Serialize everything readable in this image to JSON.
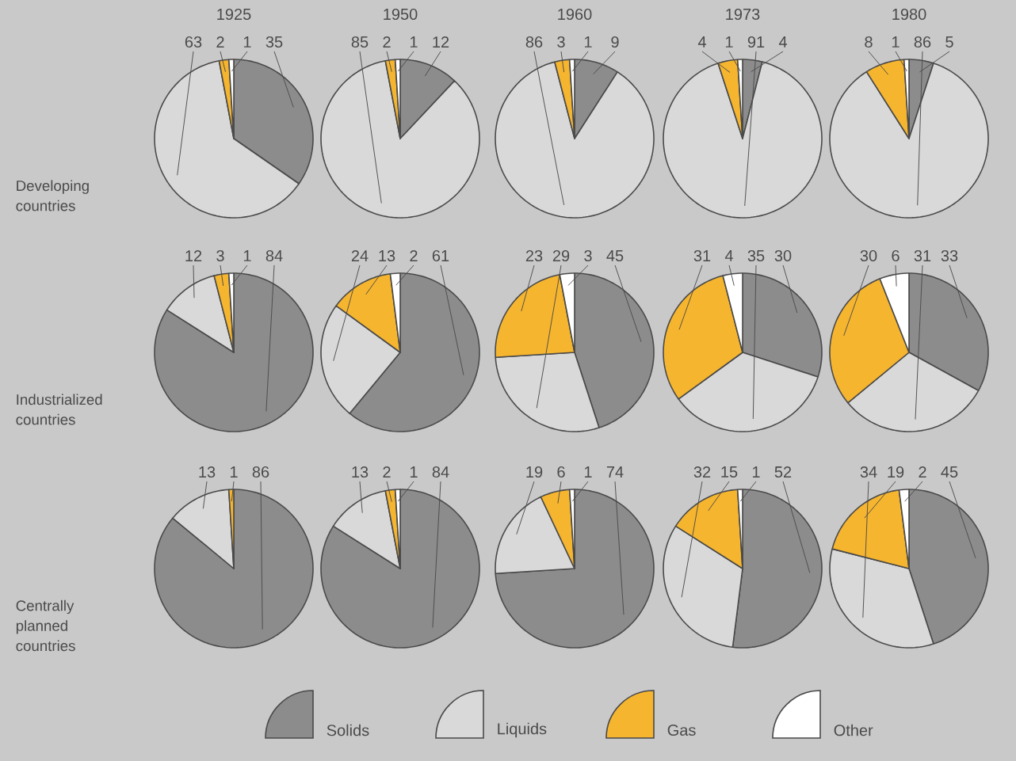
{
  "chart_data": [
    {
      "type": "pie",
      "title": "1925",
      "ylabel": "Developing countries",
      "categories": [
        "Solids",
        "Liquids",
        "Gas",
        "Other"
      ],
      "legend": "bottom",
      "values": [
        35,
        63,
        2,
        1
      ],
      "colors": [
        "#8c8c8c",
        "#d9d9d9",
        "#f6b52e",
        "#ffffff"
      ],
      "data_labels": true
    },
    {
      "type": "pie",
      "title": "1950",
      "categories": [
        null,
        null,
        null,
        null
      ],
      "values": [
        12,
        85,
        2,
        1
      ],
      "colors": [
        "#8c8c8c",
        "#d9d9d9",
        "#f6b52e",
        "#ffffff"
      ],
      "data_labels": true
    },
    {
      "type": "pie",
      "title": "1960",
      "categories": [
        null,
        null,
        null,
        null
      ],
      "values": [
        9,
        86,
        3,
        1
      ],
      "colors": [
        "#8c8c8c",
        "#d9d9d9",
        "#f6b52e",
        "#ffffff"
      ],
      "data_labels": true
    },
    {
      "type": "pie",
      "title": "1973",
      "categories": [
        null,
        null,
        null,
        null
      ],
      "values": [
        4,
        91,
        4,
        1
      ],
      "colors": [
        "#8c8c8c",
        "#d9d9d9",
        "#f6b52e",
        "#ffffff"
      ],
      "data_labels": true
    },
    {
      "type": "pie",
      "title": "1980",
      "categories": [
        null,
        null,
        null,
        null
      ],
      "values": [
        5,
        86,
        8,
        1
      ],
      "colors": [
        "#8c8c8c",
        "#d9d9d9",
        "#f6b52e",
        "#ffffff"
      ],
      "data_labels": true
    },
    {
      "type": "pie",
      "ylabel": "Industrialized countries",
      "categories": [
        null,
        null,
        null,
        null
      ],
      "values": [
        84,
        12,
        3,
        1
      ],
      "colors": [
        "#8c8c8c",
        "#d9d9d9",
        "#f6b52e",
        "#ffffff"
      ],
      "data_labels": true
    },
    {
      "type": "pie",
      "categories": [
        null,
        null,
        null,
        null
      ],
      "values": [
        61,
        24,
        13,
        2
      ],
      "colors": [
        "#8c8c8c",
        "#d9d9d9",
        "#f6b52e",
        "#ffffff"
      ],
      "data_labels": true
    },
    {
      "type": "pie",
      "categories": [
        null,
        null,
        null,
        null
      ],
      "values": [
        45,
        29,
        23,
        3
      ],
      "colors": [
        "#8c8c8c",
        "#d9d9d9",
        "#f6b52e",
        "#ffffff"
      ],
      "data_labels": true
    },
    {
      "type": "pie",
      "categories": [
        null,
        null,
        null,
        null
      ],
      "values": [
        30,
        35,
        31,
        4
      ],
      "colors": [
        "#8c8c8c",
        "#d9d9d9",
        "#f6b52e",
        "#ffffff"
      ],
      "data_labels": true
    },
    {
      "type": "pie",
      "categories": [
        null,
        null,
        null,
        null
      ],
      "values": [
        33,
        31,
        30,
        6
      ],
      "colors": [
        "#8c8c8c",
        "#d9d9d9",
        "#f6b52e",
        "#ffffff"
      ],
      "data_labels": true
    },
    {
      "type": "pie",
      "ylabel": "Centrally planned countries",
      "categories": [
        null,
        null,
        null,
        null
      ],
      "values": [
        86,
        13,
        1,
        null
      ],
      "colors": [
        "#8c8c8c",
        "#d9d9d9",
        "#f6b52e",
        "#ffffff"
      ],
      "data_labels": true
    },
    {
      "type": "pie",
      "categories": [
        null,
        null,
        null,
        null
      ],
      "values": [
        84,
        13,
        2,
        1
      ],
      "colors": [
        "#8c8c8c",
        "#d9d9d9",
        "#f6b52e",
        "#ffffff"
      ],
      "data_labels": true
    },
    {
      "type": "pie",
      "categories": [
        null,
        null,
        null,
        null
      ],
      "values": [
        74,
        19,
        6,
        1
      ],
      "colors": [
        "#8c8c8c",
        "#d9d9d9",
        "#f6b52e",
        "#ffffff"
      ],
      "data_labels": true
    },
    {
      "type": "pie",
      "categories": [
        null,
        null,
        null,
        null
      ],
      "values": [
        52,
        32,
        15,
        1
      ],
      "colors": [
        "#8c8c8c",
        "#d9d9d9",
        "#f6b52e",
        "#ffffff"
      ],
      "data_labels": true
    },
    {
      "type": "pie",
      "categories": [
        null,
        null,
        null,
        null
      ],
      "values": [
        45,
        34,
        19,
        2
      ],
      "colors": [
        "#8c8c8c",
        "#d9d9d9",
        "#f6b52e",
        "#ffffff"
      ],
      "data_labels": true
    }
  ]
}
